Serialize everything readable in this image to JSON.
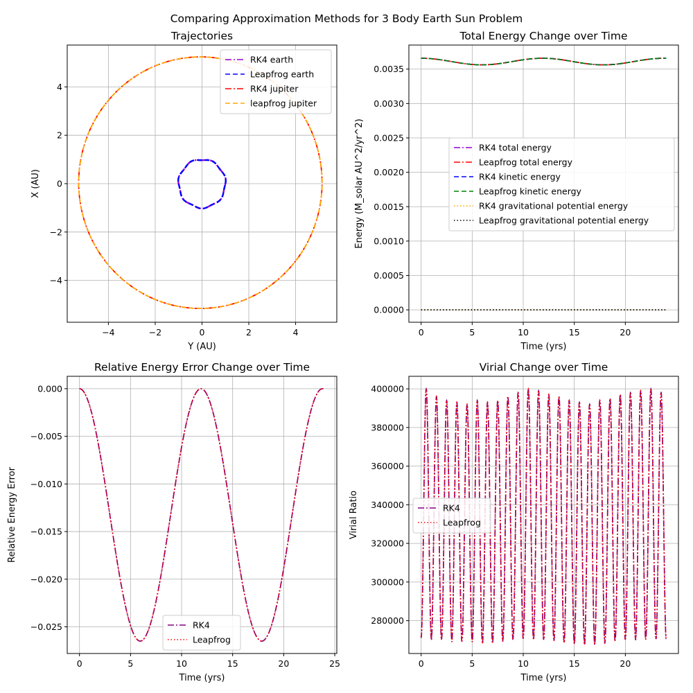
{
  "suptitle": "Comparing Approximation Methods for 3 Body Earth Sun Problem",
  "chart_data": [
    {
      "type": "line",
      "title": "Trajectories",
      "xlabel": "Y (AU)",
      "ylabel": "X (AU)",
      "xlim": [
        -5.76,
        5.76
      ],
      "ylim": [
        -5.73,
        5.73
      ],
      "xticks": [
        -4,
        -2,
        0,
        2,
        4
      ],
      "yticks": [
        -4,
        -2,
        0,
        2,
        4
      ],
      "grid": true,
      "legend_position": "top-right",
      "orbits": [
        {
          "name": "RK4 earth",
          "radius": 1.0,
          "center": [
            0,
            0
          ],
          "color": "#9400d3",
          "style": "dashdot"
        },
        {
          "name": "Leapfrog earth",
          "radius": 1.0,
          "center": [
            0,
            0
          ],
          "color": "#0000ff",
          "style": "dashed"
        },
        {
          "name": "RK4 jupiter",
          "radius": 5.2,
          "center": [
            -0.07,
            0.04
          ],
          "color": "#ff0000",
          "style": "dashdot"
        },
        {
          "name": " leapfrog jupiter",
          "radius": 5.2,
          "center": [
            -0.07,
            0.04
          ],
          "color": "#ffa500",
          "style": "dashed"
        }
      ]
    },
    {
      "type": "line",
      "title": "Total Energy Change over Time",
      "xlabel": "Time (yrs)",
      "ylabel": "Energy (M_solar AU^2/yr^2)",
      "xlim": [
        -1.2,
        25.2
      ],
      "ylim": [
        -0.00018,
        0.00385
      ],
      "xticks": [
        0,
        5,
        10,
        15,
        20
      ],
      "yticks": [
        0.0,
        0.0005,
        0.001,
        0.0015,
        0.002,
        0.0025,
        0.003,
        0.0035
      ],
      "ytick_labels": [
        "0.0000",
        "0.0005",
        "0.0010",
        "0.0015",
        "0.0020",
        "0.0025",
        "0.0030",
        "0.0035"
      ],
      "grid": true,
      "legend_position": "center-right",
      "x_range": [
        0,
        24
      ],
      "series": [
        {
          "name": "RK4 total energy",
          "color": "#9400d3",
          "style": "dashdot",
          "mean": 0.00361,
          "amplitude": 4.8e-05,
          "period": 11.9
        },
        {
          "name": "Leapfrog total energy",
          "color": "#ff0000",
          "style": "dashdot",
          "mean": 0.00361,
          "amplitude": 4.8e-05,
          "period": 11.9
        },
        {
          "name": "RK4 kinetic energy",
          "color": "#0000ff",
          "style": "dashed",
          "mean": 0.00361,
          "amplitude": 4.8e-05,
          "period": 11.9
        },
        {
          "name": "Leapfrog kinetic energy",
          "color": "#008000",
          "style": "dashed",
          "mean": 0.00361,
          "amplitude": 4.8e-05,
          "period": 11.9
        },
        {
          "name": "RK4 gravitational potential energy",
          "color": "#ffa500",
          "style": "dotted",
          "mean": 0.0,
          "amplitude": 0.0,
          "period": 11.9
        },
        {
          "name": "Leapfrog gravitational potential energy",
          "color": "#000000",
          "style": "dotted",
          "mean": 0.0,
          "amplitude": 0.0,
          "period": 11.9
        }
      ]
    },
    {
      "type": "line",
      "title": "Relative Energy Error Change over Time",
      "xlabel": "Time (yrs)",
      "ylabel": "Relative Energy Error",
      "xlim": [
        -1.2,
        25.2
      ],
      "ylim": [
        -0.0278,
        0.0013
      ],
      "xticks": [
        0,
        5,
        10,
        15,
        20,
        25
      ],
      "yticks": [
        0.0,
        -0.005,
        -0.01,
        -0.015,
        -0.02,
        -0.025
      ],
      "ytick_labels": [
        "0.000",
        "−0.005",
        "−0.010",
        "−0.015",
        "−0.020",
        "−0.025"
      ],
      "grid": true,
      "legend_position": "lower-center",
      "x_range": [
        0,
        24
      ],
      "series": [
        {
          "name": "RK4",
          "color": "#800080",
          "style": "dashdot",
          "min": -0.0265,
          "period": 11.9
        },
        {
          "name": "Leapfrog",
          "color": "#ff0000",
          "style": "dotted",
          "min": -0.0265,
          "period": 11.9
        }
      ]
    },
    {
      "type": "line",
      "title": "Virial Change over Time",
      "xlabel": "Time (yrs)",
      "ylabel": "Virial Ratio",
      "xlim": [
        -1.2,
        25.2
      ],
      "ylim": [
        263000,
        406500
      ],
      "xticks": [
        0,
        5,
        10,
        15,
        20
      ],
      "yticks": [
        280000,
        300000,
        320000,
        340000,
        360000,
        380000,
        400000
      ],
      "ytick_labels": [
        "280000",
        "300000",
        "320000",
        "340000",
        "360000",
        "380000",
        "400000"
      ],
      "grid": true,
      "legend_position": "center-left",
      "x_range": [
        0,
        24
      ],
      "series": [
        {
          "name": "RK4",
          "color": "#800080",
          "style": "dashdot",
          "period": 1.0,
          "start": 272000
        },
        {
          "name": "Leapfrog",
          "color": "#ff0000",
          "style": "dotted",
          "period": 1.0,
          "start": 272000
        }
      ],
      "peaks": [
        400000,
        396000,
        394000,
        393000,
        392000,
        394000,
        393000,
        394000,
        396000,
        398000,
        400000,
        399000,
        397000,
        396000,
        394000,
        393000,
        392000,
        394000,
        395000,
        397000,
        398000,
        399000,
        400000,
        398000
      ],
      "troughs": [
        271000,
        270000,
        270500,
        269000,
        269500,
        269000,
        268000,
        269000,
        270000,
        270500,
        271000,
        270000,
        270500,
        269500,
        268500,
        268000,
        267500,
        268000,
        269000,
        270000,
        270500,
        270000,
        271000,
        270500
      ]
    }
  ]
}
